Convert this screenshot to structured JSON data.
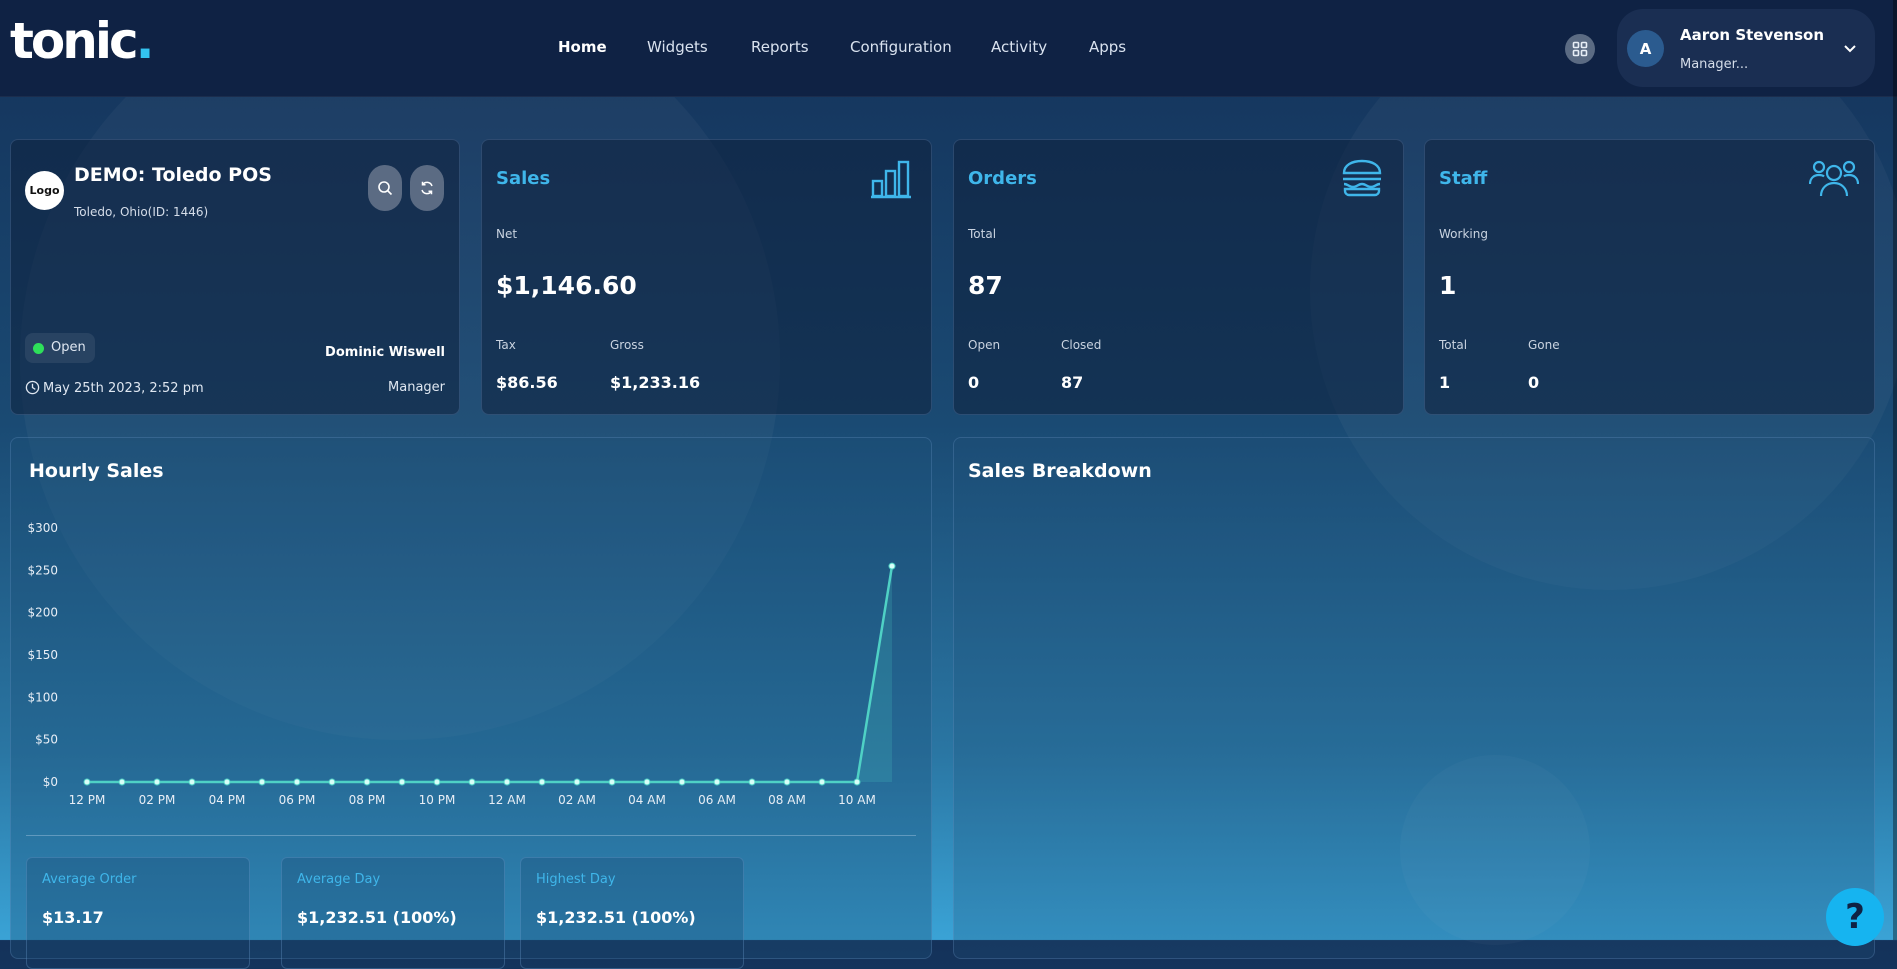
{
  "brand": {
    "logo_text": "tonic",
    "logo_dot": "."
  },
  "nav": {
    "items": [
      {
        "label": "Home",
        "active": true
      },
      {
        "label": "Widgets"
      },
      {
        "label": "Reports"
      },
      {
        "label": "Configuration"
      },
      {
        "label": "Activity"
      },
      {
        "label": "Apps"
      }
    ]
  },
  "user": {
    "initial": "A",
    "name": "Aaron Stevenson",
    "role": "Manager..."
  },
  "store": {
    "logo_label": "Logo",
    "name": "DEMO: Toledo POS",
    "location": "Toledo, Ohio(ID: 1446)",
    "status": "Open",
    "manager_name": "Dominic Wiswell",
    "manager_role": "Manager",
    "datetime": "May 25th 2023, 2:52 pm"
  },
  "sales": {
    "title": "Sales",
    "net_label": "Net",
    "net_value": "$1,146.60",
    "tax_label": "Tax",
    "tax_value": "$86.56",
    "gross_label": "Gross",
    "gross_value": "$1,233.16"
  },
  "orders": {
    "title": "Orders",
    "total_label": "Total",
    "total_value": "87",
    "open_label": "Open",
    "open_value": "0",
    "closed_label": "Closed",
    "closed_value": "87"
  },
  "staff": {
    "title": "Staff",
    "working_label": "Working",
    "working_value": "1",
    "total_label": "Total",
    "total_value": "1",
    "gone_label": "Gone",
    "gone_value": "0"
  },
  "hourly": {
    "title": "Hourly Sales",
    "stats": [
      {
        "label": "Average Order",
        "value": "$13.17"
      },
      {
        "label": "Average Day",
        "value": "$1,232.51 (100%)"
      },
      {
        "label": "Highest Day",
        "value": "$1,232.51 (100%)"
      }
    ]
  },
  "breakdown": {
    "title": "Sales Breakdown"
  },
  "help": {
    "label": "?"
  },
  "colors": {
    "accent": "#3fb6ea",
    "line": "#4fd1c5",
    "open_dot": "#2ee05a"
  },
  "chart_data": {
    "type": "line",
    "title": "Hourly Sales",
    "ylim": [
      0,
      300
    ],
    "y_ticks": [
      0,
      50,
      100,
      150,
      200,
      250,
      300
    ],
    "y_tick_labels": [
      "$0",
      "$50",
      "$100",
      "$150",
      "$200",
      "$250",
      "$300"
    ],
    "x_tick_labels": [
      "12 PM",
      "02 PM",
      "04 PM",
      "06 PM",
      "08 PM",
      "10 PM",
      "12 AM",
      "02 AM",
      "04 AM",
      "06 AM",
      "08 AM",
      "10 AM"
    ],
    "series": [
      {
        "values": [
          0,
          0,
          0,
          0,
          0,
          0,
          0,
          0,
          0,
          0,
          0,
          0,
          0,
          0,
          0,
          0,
          0,
          0,
          0,
          0,
          0,
          0,
          0,
          255
        ]
      }
    ],
    "grid": false
  }
}
